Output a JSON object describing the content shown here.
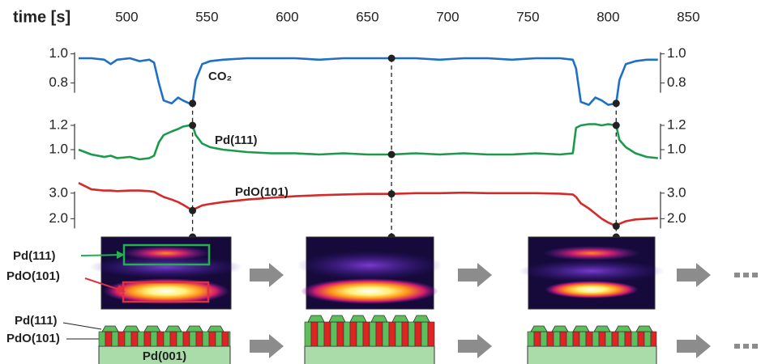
{
  "chart_data": {
    "type": "line",
    "xlabel": "time [s]",
    "xlim": [
      470,
      870
    ],
    "xticks": [
      500,
      550,
      600,
      650,
      700,
      750,
      800,
      850
    ],
    "x": [
      470,
      478,
      486,
      490,
      494,
      502,
      508,
      514,
      517,
      520,
      523,
      528,
      532,
      535,
      539,
      541,
      543,
      547,
      552,
      560,
      575,
      590,
      605,
      620,
      635,
      650,
      665,
      680,
      695,
      710,
      725,
      740,
      755,
      770,
      778,
      780,
      783,
      788,
      792,
      796,
      800,
      805,
      807,
      811,
      817,
      824,
      831
    ],
    "series": [
      {
        "name": "CO₂",
        "color": "#1f6fc4",
        "ylim": [
          0.62,
          1.02
        ],
        "yticks": [
          {
            "value": 0.8,
            "label": "0.8"
          },
          {
            "value": 1.0,
            "label": "1.0"
          }
        ],
        "values": [
          0.97,
          0.97,
          0.96,
          0.93,
          0.96,
          0.97,
          0.95,
          0.96,
          0.94,
          0.8,
          0.68,
          0.66,
          0.7,
          0.68,
          0.66,
          0.66,
          0.82,
          0.93,
          0.95,
          0.96,
          0.97,
          0.97,
          0.97,
          0.96,
          0.97,
          0.97,
          0.97,
          0.97,
          0.96,
          0.97,
          0.97,
          0.96,
          0.97,
          0.97,
          0.96,
          0.9,
          0.67,
          0.65,
          0.7,
          0.68,
          0.65,
          0.66,
          0.82,
          0.93,
          0.95,
          0.96,
          0.96
        ]
      },
      {
        "name": "Pd(111)",
        "color": "#1a9a4a",
        "ylim": [
          0.88,
          1.24
        ],
        "yticks": [
          {
            "value": 1.0,
            "label": "1.0"
          },
          1.2
        ],
        "values": [
          1.0,
          0.96,
          0.94,
          0.95,
          0.93,
          0.94,
          0.92,
          0.93,
          0.95,
          1.06,
          1.12,
          1.15,
          1.17,
          1.19,
          1.2,
          1.2,
          1.12,
          1.05,
          1.02,
          1.0,
          0.98,
          0.97,
          0.97,
          0.96,
          0.97,
          0.96,
          0.96,
          0.97,
          0.96,
          0.97,
          0.96,
          0.96,
          0.97,
          0.96,
          0.97,
          1.18,
          1.2,
          1.21,
          1.21,
          1.2,
          1.21,
          1.2,
          1.08,
          1.02,
          0.97,
          0.94,
          0.93
        ]
      },
      {
        "name": "PdO(101)",
        "color": "#d42a2a",
        "ylim": [
          1.6,
          3.5
        ],
        "yticks": [
          {
            "value": 2.0,
            "label": "2.0"
          },
          {
            "value": 3.0,
            "label": "3.0"
          }
        ],
        "values": [
          3.4,
          3.15,
          3.1,
          3.1,
          3.08,
          3.1,
          3.1,
          3.08,
          3.05,
          2.95,
          2.85,
          2.75,
          2.65,
          2.55,
          2.4,
          2.32,
          2.4,
          2.52,
          2.58,
          2.65,
          2.75,
          2.82,
          2.88,
          2.92,
          2.95,
          2.97,
          2.97,
          3.0,
          3.0,
          3.02,
          3.0,
          3.0,
          3.0,
          2.98,
          2.95,
          2.85,
          2.6,
          2.4,
          2.2,
          2.0,
          1.85,
          1.71,
          1.8,
          1.9,
          1.97,
          2.0,
          2.02
        ]
      }
    ],
    "markers": [
      541,
      665,
      805
    ],
    "annotations": [
      "Pd(111)",
      "PdO(101)",
      "Pd(111)",
      "PdO(101)",
      "Pd(001)"
    ]
  }
}
